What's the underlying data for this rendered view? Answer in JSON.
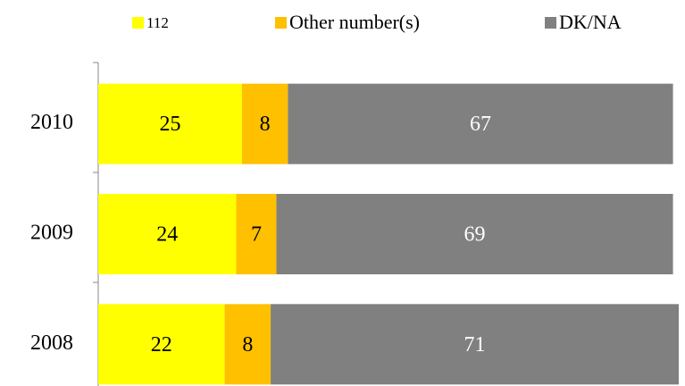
{
  "chart_data": {
    "type": "stacked-barh",
    "categories": [
      "2010",
      "2009",
      "2008"
    ],
    "series": [
      {
        "name": "112",
        "color": "#ffff00",
        "label_color": "#000000",
        "values": [
          25,
          24,
          22
        ]
      },
      {
        "name": "Other number(s)",
        "color": "#ffc000",
        "label_color": "#000000",
        "values": [
          8,
          7,
          8
        ]
      },
      {
        "name": "DK/NA",
        "color": "#808080",
        "label_color": "#ffffff",
        "values": [
          67,
          69,
          71
        ]
      }
    ],
    "xlim": [
      0,
      101
    ],
    "legend": "top"
  }
}
